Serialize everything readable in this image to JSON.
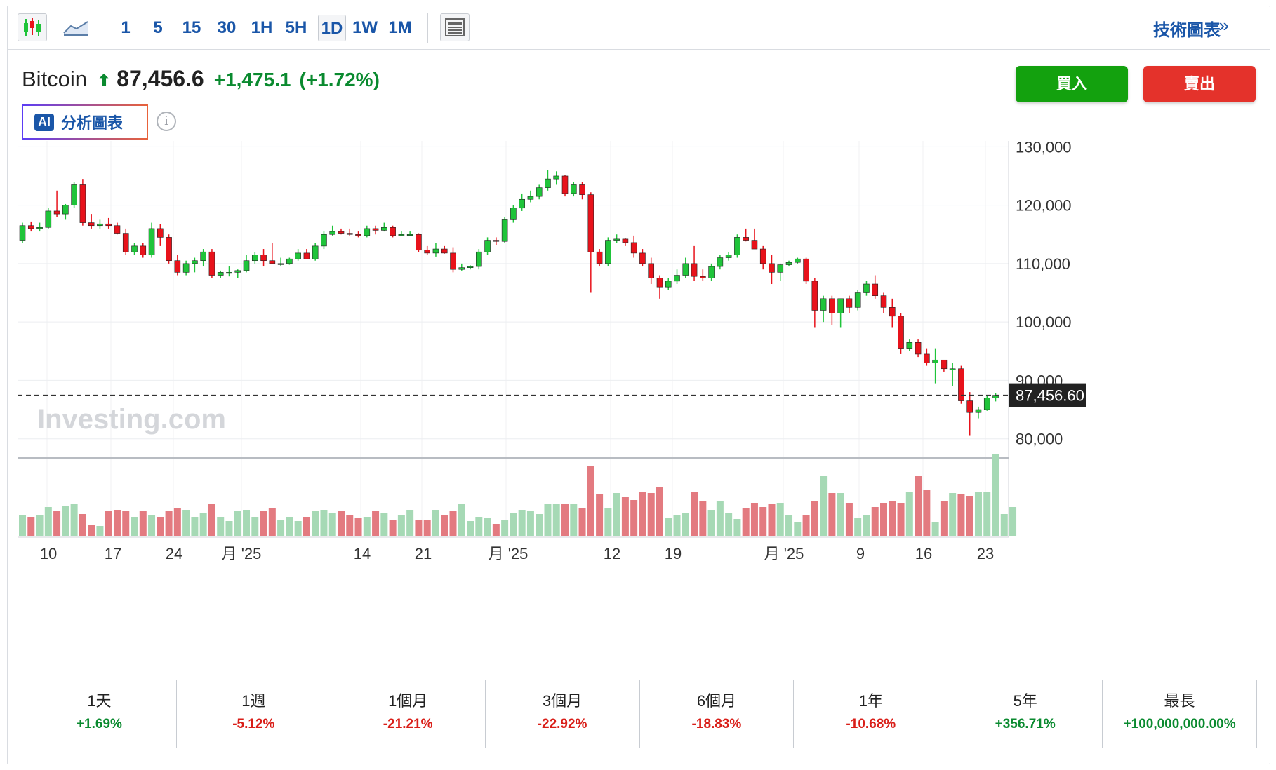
{
  "toolbar": {
    "candle_icon": "candlestick-icon",
    "line_icon": "area-line-icon",
    "timeframes": [
      "1",
      "5",
      "15",
      "30",
      "1H",
      "5H",
      "1D",
      "1W",
      "1M"
    ],
    "active_timeframe": "1D",
    "layout_icon": "news-layout-icon",
    "tech_chart_label": "技術圖表",
    "tech_chart_arrow": "»"
  },
  "header": {
    "asset_name": "Bitcoin",
    "direction_icon": "up-arrow-icon",
    "price": "87,456.6",
    "change": "+1,475.1",
    "change_pct": "(+1.72%)",
    "ai_badge": "AI",
    "ai_label": "分析圖表",
    "info_icon": "i",
    "buy_label": "買入",
    "sell_label": "賣出"
  },
  "colors": {
    "up": "#1fc43a",
    "down": "#e8121b",
    "vol_up": "#a6d9b5",
    "vol_down": "#e37a80",
    "accent": "#1a56a8"
  },
  "watermark": "Investing.com",
  "chart_data": {
    "type": "candlestick",
    "y_axis_ticks": [
      "130,000",
      "120,000",
      "110,000",
      "100,000",
      "90,000",
      "80,000"
    ],
    "ylim": [
      76000,
      131000
    ],
    "x_axis_labels": [
      "10",
      "17",
      "24",
      "月 '25",
      "14",
      "21",
      "月 '25",
      "12",
      "19",
      "月 '25",
      "9",
      "16",
      "23"
    ],
    "last_price_label": "87,456.60",
    "last_price": 87456.6,
    "candles": [
      [
        114000,
        117000,
        113500,
        116500
      ],
      [
        116500,
        117200,
        115500,
        116000
      ],
      [
        116000,
        117000,
        115500,
        116200
      ],
      [
        116200,
        119500,
        116000,
        119000
      ],
      [
        119000,
        122500,
        118000,
        118500
      ],
      [
        118500,
        120200,
        117500,
        120000
      ],
      [
        120000,
        124000,
        119500,
        123500
      ],
      [
        123500,
        124500,
        116500,
        117000
      ],
      [
        117000,
        118500,
        116000,
        116500
      ],
      [
        116500,
        117500,
        116000,
        116800
      ],
      [
        116800,
        117800,
        116000,
        116500
      ],
      [
        116500,
        117000,
        115000,
        115200
      ],
      [
        115200,
        116000,
        111500,
        112000
      ],
      [
        112000,
        113500,
        111500,
        113000
      ],
      [
        113000,
        113500,
        111000,
        111500
      ],
      [
        111500,
        117000,
        111000,
        116000
      ],
      [
        116000,
        116800,
        113000,
        114500
      ],
      [
        114500,
        115000,
        110000,
        110500
      ],
      [
        110500,
        111500,
        108000,
        108500
      ],
      [
        108500,
        110500,
        108000,
        110000
      ],
      [
        110000,
        111000,
        108500,
        110500
      ],
      [
        110500,
        112500,
        109500,
        112000
      ],
      [
        112000,
        112500,
        107500,
        108000
      ],
      [
        108000,
        108800,
        107500,
        108500
      ],
      [
        108500,
        109500,
        107800,
        108500
      ],
      [
        108500,
        109000,
        107500,
        108800
      ],
      [
        108800,
        111500,
        108500,
        110500
      ],
      [
        110500,
        112000,
        110000,
        111500
      ],
      [
        111500,
        112500,
        109500,
        110500
      ],
      [
        110500,
        113500,
        110000,
        110000
      ],
      [
        110000,
        111000,
        109500,
        110000
      ],
      [
        110000,
        111000,
        109800,
        110800
      ],
      [
        110800,
        112500,
        110500,
        111800
      ],
      [
        111800,
        112500,
        110800,
        110800
      ],
      [
        110800,
        113500,
        110500,
        113000
      ],
      [
        113000,
        115500,
        112500,
        115000
      ],
      [
        115000,
        116500,
        114800,
        115500
      ],
      [
        115500,
        116000,
        115000,
        115200
      ],
      [
        115200,
        116000,
        114800,
        115000
      ],
      [
        115000,
        115500,
        114500,
        114800
      ],
      [
        114800,
        116500,
        114500,
        116000
      ],
      [
        116000,
        116500,
        115000,
        115700
      ],
      [
        115700,
        117000,
        115500,
        116200
      ],
      [
        116200,
        116500,
        114500,
        114800
      ],
      [
        114800,
        115500,
        114700,
        115000
      ],
      [
        115000,
        115500,
        114700,
        115000
      ],
      [
        115000,
        115200,
        112000,
        112300
      ],
      [
        112300,
        113000,
        111500,
        111800
      ],
      [
        111800,
        113500,
        111200,
        112500
      ],
      [
        112500,
        113000,
        111700,
        111800
      ],
      [
        111800,
        112800,
        108500,
        109000
      ],
      [
        109000,
        110000,
        108800,
        109300
      ],
      [
        109300,
        109700,
        109000,
        109500
      ],
      [
        109500,
        112500,
        109000,
        112000
      ],
      [
        112000,
        114500,
        111500,
        114000
      ],
      [
        114000,
        114500,
        113200,
        113800
      ],
      [
        113800,
        118000,
        113500,
        117500
      ],
      [
        117500,
        120000,
        117000,
        119500
      ],
      [
        119500,
        122000,
        119000,
        121000
      ],
      [
        121000,
        122500,
        120500,
        121500
      ],
      [
        121500,
        123500,
        121000,
        123000
      ],
      [
        123000,
        126000,
        122500,
        124500
      ],
      [
        124500,
        125800,
        123500,
        125000
      ],
      [
        125000,
        125200,
        121500,
        122000
      ],
      [
        122000,
        124000,
        121500,
        123500
      ],
      [
        123500,
        124000,
        121000,
        121800
      ],
      [
        121800,
        122200,
        105000,
        112000
      ],
      [
        112000,
        112500,
        109500,
        110000
      ],
      [
        110000,
        114500,
        109500,
        114000
      ],
      [
        114000,
        115000,
        113500,
        114200
      ],
      [
        114200,
        114400,
        113000,
        113600
      ],
      [
        113600,
        114800,
        111000,
        111800
      ],
      [
        111800,
        112500,
        109500,
        110000
      ],
      [
        110000,
        111000,
        106500,
        107500
      ],
      [
        107500,
        108000,
        104000,
        106000
      ],
      [
        106000,
        107500,
        105500,
        107000
      ],
      [
        107000,
        109000,
        106500,
        108000
      ],
      [
        108000,
        111000,
        107500,
        110000
      ],
      [
        110000,
        113000,
        107000,
        107800
      ],
      [
        107800,
        109000,
        107000,
        107500
      ],
      [
        107500,
        110000,
        107000,
        109500
      ],
      [
        109500,
        111500,
        109000,
        111000
      ],
      [
        111000,
        112000,
        110500,
        111500
      ],
      [
        111500,
        115000,
        111000,
        114500
      ],
      [
        114500,
        116000,
        113800,
        114000
      ],
      [
        114000,
        116000,
        113000,
        112500
      ],
      [
        112500,
        113000,
        109000,
        110000
      ],
      [
        110000,
        111500,
        106500,
        108500
      ],
      [
        108500,
        110000,
        107000,
        109800
      ],
      [
        109800,
        110500,
        109500,
        110200
      ],
      [
        110200,
        111000,
        110000,
        110800
      ],
      [
        110800,
        111000,
        106500,
        107000
      ],
      [
        107000,
        107500,
        99000,
        102000
      ],
      [
        102000,
        104500,
        100000,
        104000
      ],
      [
        104000,
        104500,
        99500,
        101500
      ],
      [
        101500,
        104000,
        99000,
        104000
      ],
      [
        104000,
        104500,
        101500,
        102500
      ],
      [
        102500,
        105500,
        102000,
        105000
      ],
      [
        105000,
        107000,
        104500,
        106500
      ],
      [
        106500,
        108000,
        104000,
        104500
      ],
      [
        104500,
        105000,
        101500,
        102500
      ],
      [
        102500,
        104000,
        99000,
        101000
      ],
      [
        101000,
        101500,
        94500,
        95500
      ],
      [
        95500,
        97000,
        95000,
        96500
      ],
      [
        96500,
        97000,
        94000,
        94500
      ],
      [
        94500,
        95500,
        92500,
        93000
      ],
      [
        93000,
        95500,
        89500,
        93500
      ],
      [
        93500,
        93500,
        91500,
        92000
      ],
      [
        92000,
        93000,
        89000,
        92000
      ],
      [
        92000,
        92500,
        86000,
        86500
      ],
      [
        86500,
        88000,
        80500,
        84500
      ],
      [
        84500,
        85500,
        83500,
        85000
      ],
      [
        85000,
        87500,
        84800,
        87000
      ],
      [
        87000,
        87800,
        86400,
        87456
      ]
    ],
    "volumes": [
      30,
      28,
      30,
      42,
      36,
      44,
      46,
      32,
      17,
      15,
      36,
      38,
      36,
      28,
      36,
      30,
      28,
      36,
      40,
      38,
      28,
      34,
      46,
      28,
      22,
      36,
      38,
      28,
      36,
      40,
      24,
      28,
      22,
      28,
      36,
      38,
      34,
      36,
      30,
      26,
      28,
      36,
      34,
      24,
      30,
      38,
      24,
      24,
      38,
      30,
      36,
      46,
      22,
      28,
      26,
      18,
      24,
      34,
      38,
      36,
      32,
      46,
      46,
      46,
      46,
      40,
      100,
      60,
      40,
      62,
      56,
      52,
      64,
      62,
      70,
      26,
      30,
      34,
      64,
      50,
      38,
      50,
      34,
      25,
      40,
      48,
      42,
      46,
      48,
      30,
      20,
      30,
      50,
      86,
      62,
      62,
      48,
      26,
      30,
      42,
      48,
      50,
      48,
      64,
      86,
      66,
      20,
      50,
      62,
      60,
      58,
      64,
      64,
      118,
      32,
      42
    ]
  },
  "performance": [
    {
      "label": "1天",
      "value": "+1.69%",
      "sign": "pos"
    },
    {
      "label": "1週",
      "value": "-5.12%",
      "sign": "neg"
    },
    {
      "label": "1個月",
      "value": "-21.21%",
      "sign": "neg"
    },
    {
      "label": "3個月",
      "value": "-22.92%",
      "sign": "neg"
    },
    {
      "label": "6個月",
      "value": "-18.83%",
      "sign": "neg"
    },
    {
      "label": "1年",
      "value": "-10.68%",
      "sign": "neg"
    },
    {
      "label": "5年",
      "value": "+356.71%",
      "sign": "pos"
    },
    {
      "label": "最長",
      "value": "+100,000,000.00%",
      "sign": "pos"
    }
  ]
}
